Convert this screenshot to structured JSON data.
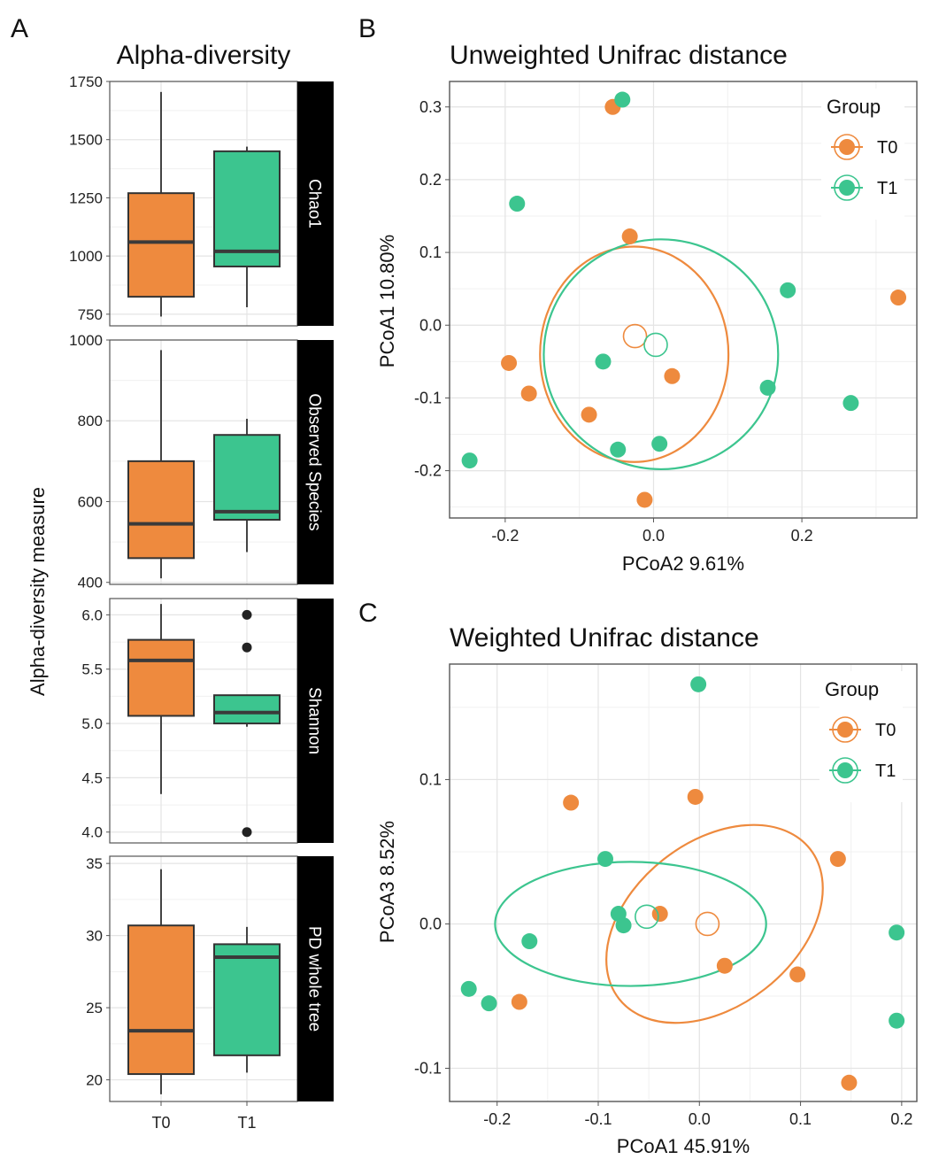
{
  "panel_letters": {
    "a": "A",
    "b": "B",
    "c": "C"
  },
  "colors": {
    "T0": "#ee8a3e",
    "T1": "#3cc58f",
    "strip": "#000000",
    "grid": "#e4e4e4",
    "frame": "#555555",
    "whisker": "#444444",
    "median": "#3a3a3a"
  },
  "legend": {
    "title": "Group",
    "items": [
      "T0",
      "T1"
    ]
  },
  "chart_data": [
    {
      "id": "alpha",
      "type": "boxplot",
      "title": "Alpha-diversity",
      "ylabel": "Alpha-diversity measure",
      "categories": [
        "T0",
        "T1"
      ],
      "facets": [
        {
          "label": "Chao1",
          "ylim": [
            700,
            1750
          ],
          "ticks": [
            750,
            1000,
            1250,
            1500,
            1750
          ],
          "boxes": [
            {
              "group": "T0",
              "lower_whisker": 740,
              "q1": 825,
              "median": 1060,
              "q3": 1270,
              "upper_whisker": 1705,
              "outliers": []
            },
            {
              "group": "T1",
              "lower_whisker": 780,
              "q1": 955,
              "median": 1020,
              "q3": 1450,
              "upper_whisker": 1470,
              "outliers": []
            }
          ]
        },
        {
          "label": "Observed Species",
          "ylim": [
            395,
            1000
          ],
          "ticks": [
            400,
            600,
            800,
            1000
          ],
          "boxes": [
            {
              "group": "T0",
              "lower_whisker": 410,
              "q1": 460,
              "median": 545,
              "q3": 700,
              "upper_whisker": 975,
              "outliers": []
            },
            {
              "group": "T1",
              "lower_whisker": 475,
              "q1": 555,
              "median": 575,
              "q3": 765,
              "upper_whisker": 805,
              "outliers": []
            }
          ]
        },
        {
          "label": "Shannon",
          "ylim": [
            3.9,
            6.15
          ],
          "ticks": [
            4.0,
            4.5,
            5.0,
            5.5,
            6.0
          ],
          "boxes": [
            {
              "group": "T0",
              "lower_whisker": 4.35,
              "q1": 5.07,
              "median": 5.58,
              "q3": 5.77,
              "upper_whisker": 6.1,
              "outliers": []
            },
            {
              "group": "T1",
              "lower_whisker": 4.97,
              "q1": 5.0,
              "median": 5.1,
              "q3": 5.26,
              "upper_whisker": 5.26,
              "outliers": [
                6.0,
                5.7,
                4.0
              ]
            }
          ]
        },
        {
          "label": "PD whole tree",
          "ylim": [
            18.5,
            35.5
          ],
          "ticks": [
            20,
            25,
            30,
            35
          ],
          "boxes": [
            {
              "group": "T0",
              "lower_whisker": 19.0,
              "q1": 20.4,
              "median": 23.4,
              "q3": 30.7,
              "upper_whisker": 34.6,
              "outliers": []
            },
            {
              "group": "T1",
              "lower_whisker": 20.5,
              "q1": 21.7,
              "median": 28.5,
              "q3": 29.4,
              "upper_whisker": 30.6,
              "outliers": []
            }
          ]
        }
      ]
    },
    {
      "id": "unweighted",
      "type": "scatter",
      "title": "Unweighted Unifrac distance",
      "xlabel": "PCoA2 9.61%",
      "ylabel": "PCoA1 10.80%",
      "xlim": [
        -0.275,
        0.355
      ],
      "ylim": [
        -0.265,
        0.335
      ],
      "xticks": [
        -0.2,
        0.0,
        0.2
      ],
      "xtick_labels": [
        "-0.2",
        "0.0",
        "0.2"
      ],
      "yticks": [
        -0.2,
        -0.1,
        0.0,
        0.1,
        0.2,
        0.3
      ],
      "ytick_labels": [
        "-0.2",
        "-0.1",
        "0.0",
        "0.1",
        "0.2",
        "0.3"
      ],
      "series": [
        {
          "name": "T0",
          "points": [
            [
              -0.055,
              0.3
            ],
            [
              -0.032,
              0.122
            ],
            [
              0.33,
              0.038
            ],
            [
              -0.195,
              -0.052
            ],
            [
              0.025,
              -0.07
            ],
            [
              -0.168,
              -0.094
            ],
            [
              -0.087,
              -0.123
            ],
            [
              -0.012,
              -0.24
            ]
          ],
          "centroid": [
            -0.025,
            -0.015
          ],
          "ellipse": {
            "center": [
              -0.026,
              -0.04
            ],
            "rx": 0.127,
            "ry": 0.148,
            "angle_deg": 0
          }
        },
        {
          "name": "T1",
          "points": [
            [
              -0.042,
              0.31
            ],
            [
              -0.184,
              0.167
            ],
            [
              0.181,
              0.048
            ],
            [
              -0.068,
              -0.05
            ],
            [
              0.154,
              -0.086
            ],
            [
              0.266,
              -0.107
            ],
            [
              -0.048,
              -0.171
            ],
            [
              0.008,
              -0.163
            ],
            [
              -0.248,
              -0.186
            ]
          ],
          "centroid": [
            0.003,
            -0.027
          ],
          "ellipse": {
            "center": [
              0.01,
              -0.04
            ],
            "rx": 0.158,
            "ry": 0.158,
            "angle_deg": 0
          }
        }
      ]
    },
    {
      "id": "weighted",
      "type": "scatter",
      "title": "Weighted Unifrac distance",
      "xlabel": "PCoA1 45.91%",
      "ylabel": "PCoA3 8.52%",
      "xlim": [
        -0.247,
        0.215
      ],
      "ylim": [
        -0.123,
        0.18
      ],
      "xticks": [
        -0.2,
        -0.1,
        0.0,
        0.1,
        0.2
      ],
      "xtick_labels": [
        "-0.2",
        "-0.1",
        "0.0",
        "0.1",
        "0.2"
      ],
      "yticks": [
        -0.1,
        0.0,
        0.1
      ],
      "ytick_labels": [
        "-0.1",
        "0.0",
        "0.1"
      ],
      "series": [
        {
          "name": "T0",
          "points": [
            [
              -0.127,
              0.084
            ],
            [
              -0.004,
              0.088
            ],
            [
              0.137,
              0.045
            ],
            [
              -0.039,
              0.007
            ],
            [
              0.025,
              -0.029
            ],
            [
              0.097,
              -0.035
            ],
            [
              -0.178,
              -0.054
            ],
            [
              0.148,
              -0.11
            ]
          ],
          "centroid": [
            0.008,
            0.0
          ],
          "ellipse": {
            "center": [
              0.015,
              0.0
            ],
            "rx": 0.12,
            "ry": 0.057,
            "angle_deg": 38
          }
        },
        {
          "name": "T1",
          "points": [
            [
              -0.001,
              0.166
            ],
            [
              -0.093,
              0.045
            ],
            [
              -0.08,
              0.007
            ],
            [
              -0.075,
              -0.001
            ],
            [
              -0.168,
              -0.012
            ],
            [
              0.195,
              -0.006
            ],
            [
              -0.228,
              -0.045
            ],
            [
              -0.208,
              -0.055
            ],
            [
              0.195,
              -0.067
            ]
          ],
          "centroid": [
            -0.052,
            0.005
          ],
          "ellipse": {
            "center": [
              -0.068,
              0.0
            ],
            "rx": 0.134,
            "ry": 0.043,
            "angle_deg": 0
          }
        }
      ]
    }
  ]
}
